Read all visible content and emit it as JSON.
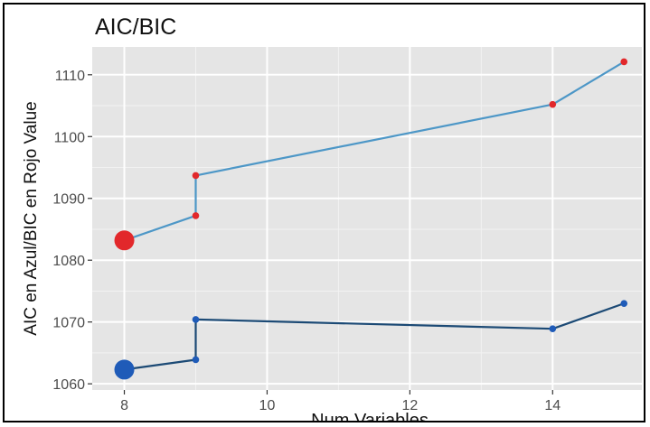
{
  "chart_data": {
    "type": "line",
    "title": "AIC/BIC",
    "xlabel": "Num Variables",
    "ylabel": "AIC en Azul/BIC en Rojo Value",
    "xlim": [
      7.55,
      15.25
    ],
    "ylim": [
      1059.0,
      1114.5
    ],
    "xticks": [
      8,
      10,
      12,
      14
    ],
    "xtick_labels": [
      "8",
      "10",
      "12",
      "14"
    ],
    "yticks": [
      1060,
      1070,
      1080,
      1090,
      1100,
      1110
    ],
    "ytick_labels": [
      "1060",
      "1070",
      "1080",
      "1090",
      "1100",
      "1110"
    ],
    "grid": true,
    "legend": "none",
    "series": [
      {
        "color": "#e2282b",
        "line_color": "#4d97c7",
        "points": [
          {
            "x": 8,
            "y": 1083.2,
            "highlight": true
          },
          {
            "x": 9,
            "y": 1087.2
          },
          {
            "x": 9,
            "y": 1093.7
          },
          {
            "x": 14,
            "y": 1105.2
          },
          {
            "x": 15,
            "y": 1112.1
          }
        ]
      },
      {
        "color": "#1f5bb8",
        "line_color": "#1c4a75",
        "points": [
          {
            "x": 8,
            "y": 1062.3,
            "highlight": true
          },
          {
            "x": 9,
            "y": 1063.9
          },
          {
            "x": 9,
            "y": 1070.4
          },
          {
            "x": 14,
            "y": 1068.9
          },
          {
            "x": 15,
            "y": 1073.0
          }
        ]
      }
    ]
  }
}
